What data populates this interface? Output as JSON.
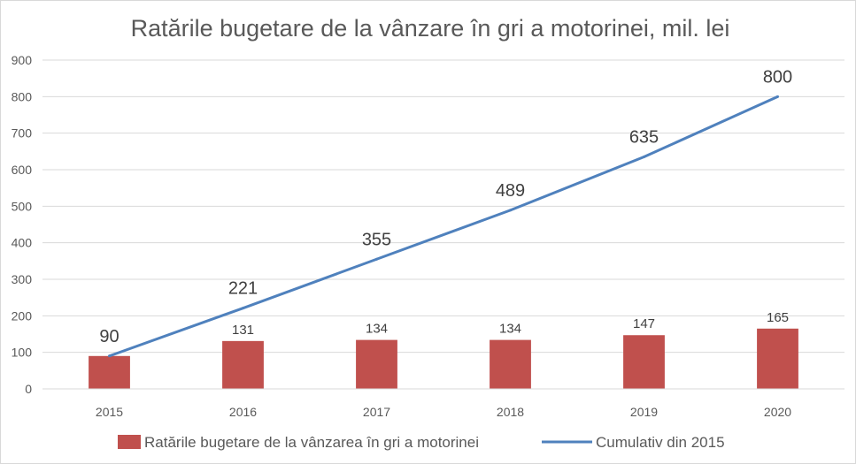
{
  "chart_data": {
    "type": "bar",
    "title": "Ratările bugetare de la vânzare în gri a motorinei, mil. lei",
    "xlabel": "",
    "ylabel": "",
    "categories": [
      "2015",
      "2016",
      "2017",
      "2018",
      "2019",
      "2020"
    ],
    "ylim": [
      0,
      900
    ],
    "yticks": [
      "0",
      "100",
      "200",
      "300",
      "400",
      "500",
      "600",
      "700",
      "800",
      "900"
    ],
    "grid": true,
    "legend_position": "bottom",
    "series": [
      {
        "name": "Ratările bugetare de la vânzarea în gri a motorinei",
        "kind": "bar",
        "color": "#c0504d",
        "values": [
          90,
          131,
          134,
          134,
          147,
          165
        ],
        "labels": [
          "",
          "131",
          "134",
          "134",
          "147",
          "165"
        ]
      },
      {
        "name": "Cumulativ din 2015",
        "kind": "line",
        "color": "#4f81bd",
        "values": [
          90,
          221,
          355,
          489,
          635,
          800
        ],
        "labels": [
          "90",
          "221",
          "355",
          "489",
          "635",
          "800"
        ]
      }
    ]
  }
}
